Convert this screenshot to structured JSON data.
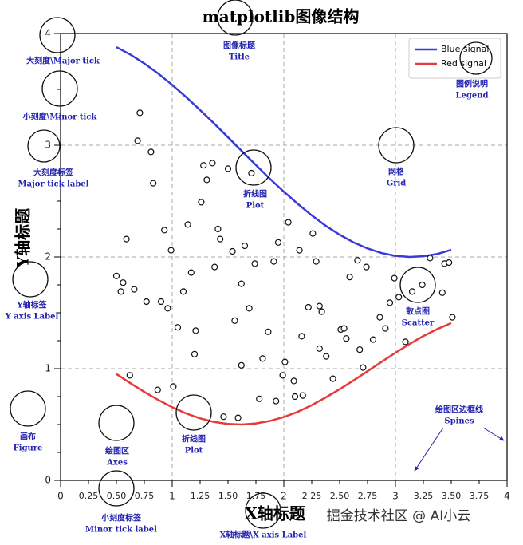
{
  "chart_data": {
    "type": "line",
    "title": "matplotlib图像结构",
    "xlabel": "X轴标题",
    "ylabel": "Y轴标题",
    "xlim": [
      0,
      4
    ],
    "ylim": [
      0,
      4
    ],
    "xticks": [
      0,
      1,
      2,
      3,
      4
    ],
    "xminorticks": [
      0.25,
      {
        "value": 0.5,
        "label": "0.50"
      },
      0.75,
      1.25,
      {
        "value": 1.5,
        "label": "1.50"
      },
      1.75,
      2.25,
      {
        "value": 2.5,
        "label": "2.50"
      },
      2.75,
      3.25,
      {
        "value": 3.5,
        "label": "3.50"
      },
      3.75
    ],
    "yticks": [
      0,
      1,
      2,
      3,
      4
    ],
    "yminorticks": [
      0.25,
      0.5,
      0.75,
      1.25,
      1.5,
      1.75,
      2.25,
      2.5,
      2.75,
      3.25,
      3.5,
      3.75
    ],
    "grid": true,
    "legend": "upper right",
    "series": [
      {
        "name": "Blue signal",
        "color": "#3a3ad8",
        "x": [
          0.5,
          0.625,
          0.75,
          0.875,
          1.0,
          1.125,
          1.25,
          1.375,
          1.5,
          1.625,
          1.75,
          1.875,
          2.0,
          2.125,
          2.25,
          2.375,
          2.5,
          2.625,
          2.75,
          2.875,
          3.0,
          3.125,
          3.25,
          3.375,
          3.5
        ],
        "values": [
          3.878,
          3.811,
          3.732,
          3.641,
          3.54,
          3.431,
          3.315,
          3.195,
          3.071,
          2.946,
          2.822,
          2.7,
          2.584,
          2.475,
          2.372,
          2.279,
          2.199,
          2.13,
          2.076,
          2.035,
          2.01,
          2.0,
          2.006,
          2.027,
          2.064
        ]
      },
      {
        "name": "Red signal",
        "color": "#e83a3a",
        "x": [
          0.5,
          0.625,
          0.75,
          0.875,
          1.0,
          1.125,
          1.25,
          1.375,
          1.5,
          1.625,
          1.75,
          1.875,
          2.0,
          2.125,
          2.25,
          2.375,
          2.5,
          2.625,
          2.75,
          2.875,
          3.0,
          3.125,
          3.25,
          3.375,
          3.5
        ],
        "values": [
          0.952,
          0.87,
          0.792,
          0.72,
          0.655,
          0.599,
          0.555,
          0.523,
          0.505,
          0.5,
          0.51,
          0.532,
          0.567,
          0.614,
          0.673,
          0.742,
          0.816,
          0.895,
          0.977,
          1.06,
          1.142,
          1.22,
          1.292,
          1.354,
          1.408
        ]
      },
      {
        "type": "scatter",
        "color": "#111111",
        "x": [
          0.71,
          0.69,
          0.81,
          0.83,
          0.59,
          0.93,
          0.99,
          0.5,
          0.56,
          0.54,
          0.66,
          0.77,
          0.9,
          0.96,
          1.05,
          1.1,
          1.17,
          1.21,
          1.2,
          1.14,
          1.26,
          1.28,
          1.36,
          1.31,
          1.41,
          1.43,
          1.38,
          1.54,
          1.5,
          1.71,
          1.65,
          1.62,
          1.69,
          1.74,
          1.91,
          1.95,
          2.04,
          2.14,
          2.26,
          2.29,
          2.16,
          2.22,
          2.32,
          2.34,
          2.32,
          2.38,
          2.51,
          2.54,
          2.56,
          2.44,
          2.66,
          2.59,
          2.74,
          2.68,
          2.8,
          2.86,
          2.71,
          2.95,
          2.99,
          2.91,
          3.03,
          3.09,
          3.15,
          3.24,
          3.31,
          3.44,
          3.48,
          3.42,
          3.51,
          0.62,
          0.87,
          1.01,
          1.46,
          1.59,
          1.78,
          1.93,
          1.99,
          2.01,
          2.09,
          2.1,
          2.17,
          1.62,
          1.56,
          1.81,
          1.86
        ],
        "values": [
          3.29,
          3.04,
          2.94,
          2.66,
          2.16,
          2.24,
          2.06,
          1.83,
          1.77,
          1.69,
          1.71,
          1.6,
          1.6,
          1.54,
          1.37,
          1.69,
          1.86,
          1.34,
          1.13,
          2.29,
          2.49,
          2.82,
          2.84,
          2.69,
          2.25,
          2.16,
          1.91,
          2.05,
          2.79,
          2.75,
          2.1,
          1.76,
          1.54,
          1.94,
          1.96,
          2.13,
          2.31,
          2.06,
          2.21,
          1.96,
          1.29,
          1.55,
          1.56,
          1.51,
          1.18,
          1.11,
          1.35,
          1.36,
          1.27,
          0.91,
          1.97,
          1.82,
          1.91,
          1.17,
          1.26,
          1.46,
          1.01,
          1.59,
          1.81,
          1.36,
          1.64,
          1.24,
          1.69,
          1.75,
          1.99,
          1.94,
          1.95,
          1.68,
          1.46,
          0.94,
          0.81,
          0.84,
          0.57,
          0.56,
          0.73,
          0.71,
          0.94,
          1.06,
          0.89,
          0.75,
          0.76,
          1.03,
          1.43,
          1.09,
          1.33
        ]
      }
    ],
    "annotations": [
      {
        "lines": [
          "大刻度\\Major tick"
        ]
      },
      {
        "lines": [
          "小刻度\\Minor tick"
        ]
      },
      {
        "lines": [
          "大刻度标签",
          "Major tick label"
        ]
      },
      {
        "lines": [
          "图像标题",
          "Title"
        ]
      },
      {
        "lines": [
          "图例说明",
          "Legend"
        ]
      },
      {
        "lines": [
          "网格",
          "Grid"
        ]
      },
      {
        "lines": [
          "折线图",
          "Plot"
        ]
      },
      {
        "lines": [
          "散点图",
          "Scatter"
        ]
      },
      {
        "lines": [
          "Y轴标签",
          "Y axis Label"
        ]
      },
      {
        "lines": [
          "画布",
          "Figure"
        ]
      },
      {
        "lines": [
          "绘图区",
          "Axes"
        ]
      },
      {
        "lines": [
          "折线图",
          "Plot"
        ]
      },
      {
        "lines": [
          "小刻度标签",
          "Minor tick label"
        ]
      },
      {
        "lines": [
          "X轴标题\\X axis Label"
        ]
      },
      {
        "lines": [
          "绘图区边框线",
          "Spines"
        ]
      }
    ],
    "watermark": "掘金技术社区 @ AI小云"
  }
}
